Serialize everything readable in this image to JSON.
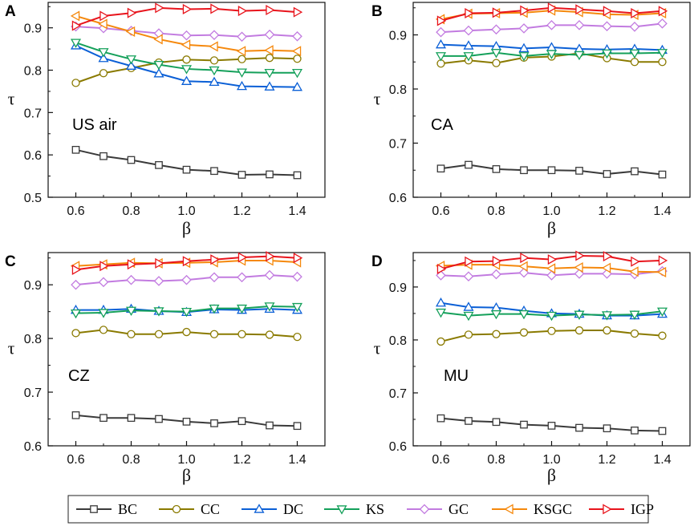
{
  "legend": [
    {
      "name": "BC",
      "color": "#3a3a3a",
      "marker": "square"
    },
    {
      "name": "CC",
      "color": "#8a7a00",
      "marker": "circle"
    },
    {
      "name": "DC",
      "color": "#0a5fd6",
      "marker": "triangle-up"
    },
    {
      "name": "KS",
      "color": "#14a05a",
      "marker": "triangle-down"
    },
    {
      "name": "GC",
      "color": "#c27be0",
      "marker": "diamond"
    },
    {
      "name": "KSGC",
      "color": "#f5880c",
      "marker": "triangle-left"
    },
    {
      "name": "IGP",
      "color": "#e8141c",
      "marker": "triangle-right"
    }
  ],
  "chart_data": [
    {
      "type": "line",
      "panel": "A",
      "annotation": "US air",
      "xlabel": "β",
      "ylabel": "τ",
      "xlim": [
        0.5,
        1.5
      ],
      "ylim": [
        0.5,
        0.96
      ],
      "xticks": [
        "0.6",
        "0.8",
        "1.0",
        "1.2",
        "1.4"
      ],
      "yticks": [
        "0.5",
        "0.6",
        "0.7",
        "0.8",
        "0.9"
      ],
      "x": [
        0.6,
        0.7,
        0.8,
        0.9,
        1.0,
        1.1,
        1.2,
        1.3,
        1.4
      ],
      "series": [
        {
          "name": "BC",
          "values": [
            0.612,
            0.597,
            0.588,
            0.576,
            0.565,
            0.562,
            0.553,
            0.554,
            0.552
          ]
        },
        {
          "name": "CC",
          "values": [
            0.77,
            0.793,
            0.805,
            0.818,
            0.825,
            0.823,
            0.826,
            0.829,
            0.827
          ]
        },
        {
          "name": "DC",
          "values": [
            0.858,
            0.828,
            0.81,
            0.792,
            0.774,
            0.772,
            0.762,
            0.761,
            0.76
          ]
        },
        {
          "name": "KS",
          "values": [
            0.865,
            0.843,
            0.826,
            0.813,
            0.803,
            0.8,
            0.795,
            0.794,
            0.794
          ]
        },
        {
          "name": "GC",
          "values": [
            0.903,
            0.899,
            0.893,
            0.887,
            0.882,
            0.883,
            0.879,
            0.884,
            0.88
          ]
        },
        {
          "name": "KSGC",
          "values": [
            0.928,
            0.909,
            0.891,
            0.873,
            0.86,
            0.856,
            0.845,
            0.847,
            0.845
          ]
        },
        {
          "name": "IGP",
          "values": [
            0.905,
            0.928,
            0.935,
            0.947,
            0.944,
            0.945,
            0.94,
            0.942,
            0.937
          ]
        }
      ]
    },
    {
      "type": "line",
      "panel": "B",
      "annotation": "CA",
      "xlabel": "β",
      "ylabel": "τ",
      "xlim": [
        0.5,
        1.5
      ],
      "ylim": [
        0.6,
        0.96
      ],
      "xticks": [
        "0.6",
        "0.8",
        "1.0",
        "1.2",
        "1.4"
      ],
      "yticks": [
        "0.6",
        "0.7",
        "0.8",
        "0.9"
      ],
      "x": [
        0.6,
        0.7,
        0.8,
        0.9,
        1.0,
        1.1,
        1.2,
        1.3,
        1.4
      ],
      "series": [
        {
          "name": "BC",
          "values": [
            0.653,
            0.66,
            0.652,
            0.65,
            0.65,
            0.649,
            0.643,
            0.648,
            0.642
          ]
        },
        {
          "name": "CC",
          "values": [
            0.847,
            0.853,
            0.848,
            0.858,
            0.86,
            0.866,
            0.857,
            0.85,
            0.85
          ]
        },
        {
          "name": "DC",
          "values": [
            0.882,
            0.88,
            0.879,
            0.875,
            0.877,
            0.874,
            0.873,
            0.874,
            0.872
          ]
        },
        {
          "name": "KS",
          "values": [
            0.861,
            0.861,
            0.867,
            0.861,
            0.865,
            0.863,
            0.866,
            0.866,
            0.867
          ]
        },
        {
          "name": "GC",
          "values": [
            0.905,
            0.908,
            0.91,
            0.912,
            0.918,
            0.918,
            0.916,
            0.915,
            0.921
          ]
        },
        {
          "name": "KSGC",
          "values": [
            0.929,
            0.939,
            0.94,
            0.941,
            0.945,
            0.942,
            0.938,
            0.937,
            0.94
          ]
        },
        {
          "name": "IGP",
          "values": [
            0.926,
            0.94,
            0.941,
            0.945,
            0.95,
            0.947,
            0.944,
            0.94,
            0.944
          ]
        }
      ]
    },
    {
      "type": "line",
      "panel": "C",
      "annotation": "CZ",
      "xlabel": "β",
      "ylabel": "τ",
      "xlim": [
        0.5,
        1.5
      ],
      "ylim": [
        0.6,
        0.96
      ],
      "xticks": [
        "0.6",
        "0.8",
        "1.0",
        "1.2",
        "1.4"
      ],
      "yticks": [
        "0.6",
        "0.7",
        "0.8",
        "0.9"
      ],
      "x": [
        0.6,
        0.7,
        0.8,
        0.9,
        1.0,
        1.1,
        1.2,
        1.3,
        1.4
      ],
      "series": [
        {
          "name": "BC",
          "values": [
            0.657,
            0.652,
            0.652,
            0.65,
            0.645,
            0.642,
            0.646,
            0.638,
            0.637
          ]
        },
        {
          "name": "CC",
          "values": [
            0.81,
            0.816,
            0.808,
            0.808,
            0.812,
            0.808,
            0.808,
            0.807,
            0.803
          ]
        },
        {
          "name": "DC",
          "values": [
            0.853,
            0.853,
            0.855,
            0.851,
            0.849,
            0.854,
            0.853,
            0.855,
            0.853
          ]
        },
        {
          "name": "KS",
          "values": [
            0.847,
            0.848,
            0.852,
            0.851,
            0.85,
            0.856,
            0.856,
            0.86,
            0.859
          ]
        },
        {
          "name": "GC",
          "values": [
            0.9,
            0.905,
            0.909,
            0.907,
            0.909,
            0.914,
            0.914,
            0.918,
            0.915
          ]
        },
        {
          "name": "KSGC",
          "values": [
            0.935,
            0.938,
            0.941,
            0.94,
            0.941,
            0.942,
            0.945,
            0.945,
            0.942
          ]
        },
        {
          "name": "IGP",
          "values": [
            0.928,
            0.935,
            0.938,
            0.94,
            0.944,
            0.947,
            0.951,
            0.953,
            0.95
          ]
        }
      ]
    },
    {
      "type": "line",
      "panel": "D",
      "annotation": "MU",
      "xlabel": "β",
      "ylabel": "τ",
      "xlim": [
        0.5,
        1.5
      ],
      "ylim": [
        0.6,
        0.965
      ],
      "xticks": [
        "0.6",
        "0.8",
        "1.0",
        "1.2",
        "1.4"
      ],
      "yticks": [
        "0.6",
        "0.7",
        "0.8",
        "0.9"
      ],
      "x": [
        0.6,
        0.7,
        0.8,
        0.9,
        1.0,
        1.1,
        1.2,
        1.3,
        1.4
      ],
      "series": [
        {
          "name": "BC",
          "values": [
            0.652,
            0.647,
            0.645,
            0.64,
            0.638,
            0.634,
            0.633,
            0.629,
            0.628
          ]
        },
        {
          "name": "CC",
          "values": [
            0.797,
            0.81,
            0.811,
            0.814,
            0.817,
            0.818,
            0.818,
            0.812,
            0.808
          ]
        },
        {
          "name": "DC",
          "values": [
            0.87,
            0.862,
            0.861,
            0.855,
            0.85,
            0.849,
            0.846,
            0.846,
            0.849
          ]
        },
        {
          "name": "KS",
          "values": [
            0.852,
            0.846,
            0.849,
            0.849,
            0.846,
            0.848,
            0.847,
            0.848,
            0.854
          ]
        },
        {
          "name": "GC",
          "values": [
            0.922,
            0.92,
            0.924,
            0.927,
            0.922,
            0.925,
            0.925,
            0.924,
            0.93
          ]
        },
        {
          "name": "KSGC",
          "values": [
            0.94,
            0.942,
            0.942,
            0.939,
            0.935,
            0.937,
            0.936,
            0.929,
            0.928
          ]
        },
        {
          "name": "IGP",
          "values": [
            0.934,
            0.948,
            0.949,
            0.955,
            0.952,
            0.959,
            0.958,
            0.948,
            0.95
          ]
        }
      ]
    }
  ]
}
